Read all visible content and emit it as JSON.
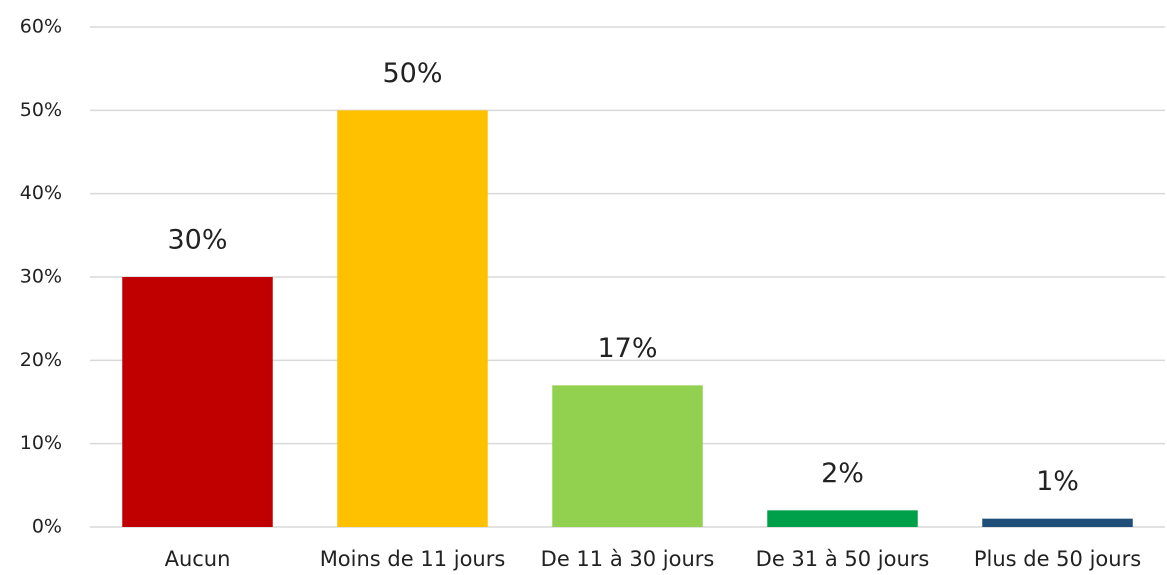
{
  "chart_data": {
    "type": "bar",
    "categories": [
      "Aucun",
      "Moins de 11 jours",
      "De 11 à 30 jours",
      "De 31 à 50 jours",
      "Plus de 50 jours"
    ],
    "values": [
      30,
      50,
      17,
      2,
      1
    ],
    "value_labels": [
      "30%",
      "50%",
      "17%",
      "2%",
      "1%"
    ],
    "colors": [
      "#c00000",
      "#ffc000",
      "#92d050",
      "#00a04a",
      "#1f4e79"
    ],
    "ylim": [
      0,
      60
    ],
    "yticks": [
      {
        "value": 0,
        "label": "0%"
      },
      {
        "value": 10,
        "label": "10%"
      },
      {
        "value": 20,
        "label": "20%"
      },
      {
        "value": 30,
        "label": "30%"
      },
      {
        "value": 40,
        "label": "40%"
      },
      {
        "value": 50,
        "label": "50%"
      },
      {
        "value": 60,
        "label": "60%"
      }
    ],
    "grid": true
  }
}
